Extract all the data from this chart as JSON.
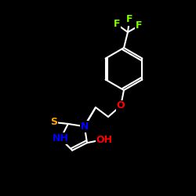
{
  "background": "#000000",
  "bond_color": "#ffffff",
  "bond_width": 1.5,
  "atom_colors": {
    "F": "#7fff00",
    "O": "#ff0000",
    "N": "#0000ff",
    "S": "#ffa500",
    "C": "#ffffff"
  },
  "font_size": 9,
  "fig_size": [
    2.5,
    2.5
  ],
  "dpi": 100,
  "xlim": [
    0,
    250
  ],
  "ylim": [
    0,
    250
  ]
}
